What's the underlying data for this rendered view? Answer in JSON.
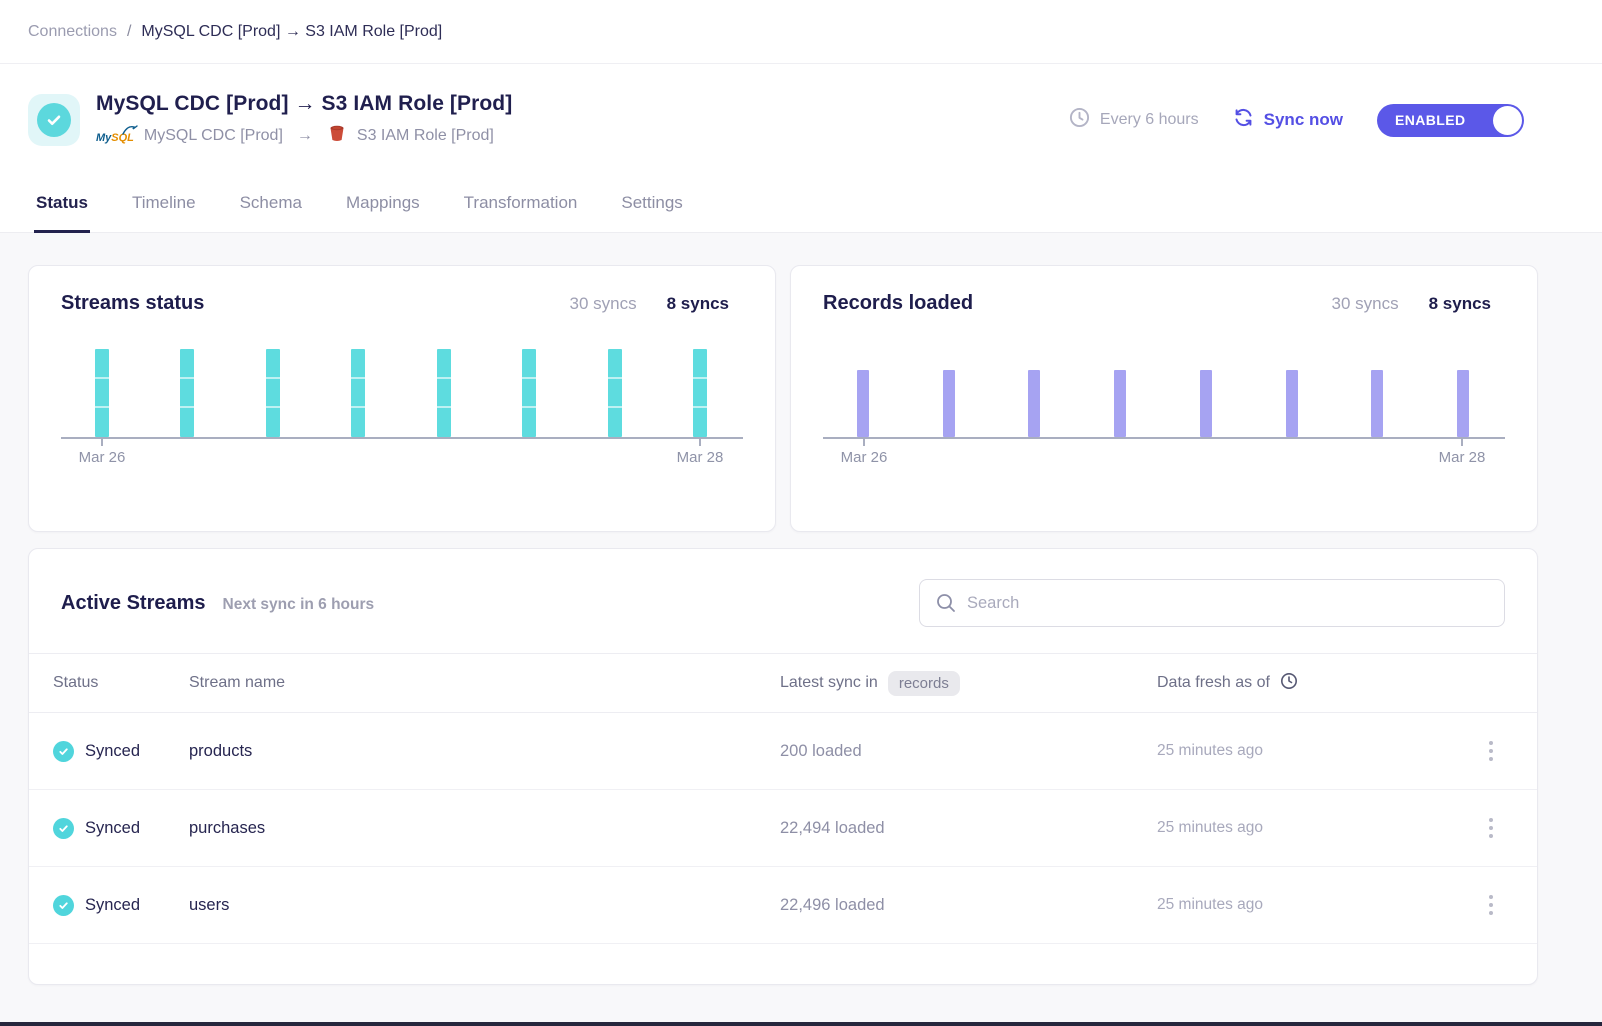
{
  "breadcrumb": {
    "root": "Connections",
    "separator": "/",
    "current": "MySQL CDC [Prod] → S3 IAM Role [Prod]"
  },
  "header": {
    "title": "MySQL CDC [Prod] → S3 IAM Role [Prod]",
    "source": {
      "name": "MySQL CDC [Prod]",
      "icon": "mysql-logo"
    },
    "arrow": "→",
    "destination": {
      "name": "S3 IAM Role [Prod]",
      "icon": "s3-bucket-icon"
    },
    "schedule": "Every 6 hours",
    "sync_button": "Sync now",
    "toggle": {
      "label": "ENABLED",
      "state": "on",
      "color": "#5b58e8"
    }
  },
  "tabs": {
    "items": [
      "Status",
      "Timeline",
      "Schema",
      "Mappings",
      "Transformation",
      "Settings"
    ],
    "active": "Status"
  },
  "chart_data": [
    {
      "type": "bar",
      "name": "streams-status",
      "title": "Streams status",
      "filters": [
        {
          "label": "30 syncs",
          "active": false
        },
        {
          "label": "8 syncs",
          "active": true
        }
      ],
      "bars": 8,
      "values": [
        3,
        3,
        3,
        3,
        3,
        3,
        3,
        3
      ],
      "segments_per_bar": 3,
      "value_unit": "streams synced per sync run (all successful)",
      "x_tick_labels": [
        "Mar 26",
        "Mar 28"
      ],
      "bar_color": "#5edcdf",
      "ylim": [
        0,
        3
      ],
      "grid": false,
      "legend": "none"
    },
    {
      "type": "bar",
      "name": "records-loaded",
      "title": "Records loaded",
      "filters": [
        {
          "label": "30 syncs",
          "active": false
        },
        {
          "label": "8 syncs",
          "active": true
        }
      ],
      "bars": 8,
      "values": [
        1,
        1,
        1,
        1,
        1,
        1,
        1,
        1
      ],
      "segments_per_bar": 1,
      "value_unit": "records loaded per sync run (equal-height bars, magnitude unlabeled)",
      "x_tick_labels": [
        "Mar 26",
        "Mar 28"
      ],
      "bar_color": "#a6a3f2",
      "grid": false,
      "legend": "none"
    }
  ],
  "active_streams": {
    "title": "Active Streams",
    "subtitle": "Next sync in 6 hours",
    "search_placeholder": "Search",
    "columns": {
      "status": "Status",
      "stream": "Stream name",
      "latest": "Latest sync in",
      "latest_badge": "records",
      "fresh": "Data fresh as of"
    },
    "rows": [
      {
        "status": "Synced",
        "stream": "products",
        "records": "200 loaded",
        "fresh": "25 minutes ago"
      },
      {
        "status": "Synced",
        "stream": "purchases",
        "records": "22,494 loaded",
        "fresh": "25 minutes ago"
      },
      {
        "status": "Synced",
        "stream": "users",
        "records": "22,496 loaded",
        "fresh": "25 minutes ago"
      }
    ]
  },
  "colors": {
    "accent": "#5b58e8",
    "teal": "#5edcdf",
    "purple": "#a6a3f2",
    "navy": "#201f4e",
    "page_bg": "#f8f8fa"
  }
}
